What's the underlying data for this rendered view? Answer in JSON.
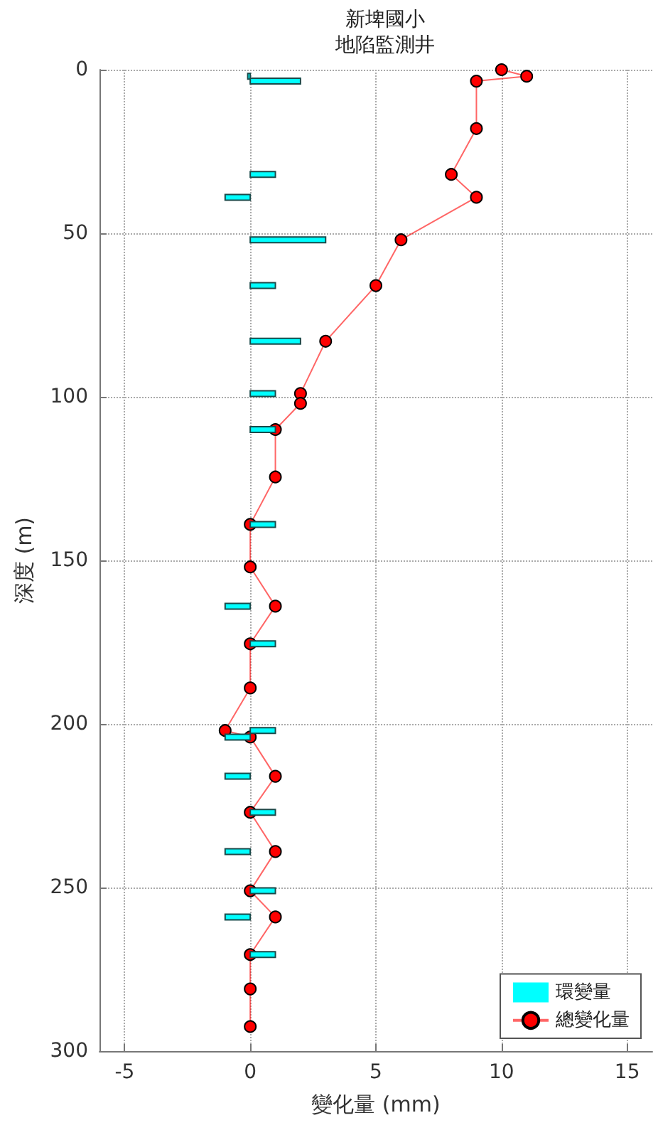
{
  "chart_data": {
    "type": "bar",
    "title": "新埤國小",
    "subtitle": "地陷監測井",
    "xlabel": "變化量 (mm)",
    "ylabel": "深度 (m)",
    "orientation": "horizontal",
    "x": [
      0,
      2,
      3.5,
      18,
      32,
      39,
      52,
      66,
      83,
      99,
      102,
      110,
      124.5,
      139,
      152,
      164,
      175.5,
      189,
      202,
      204,
      216,
      227,
      239,
      251,
      259,
      270.5,
      281,
      292.5
    ],
    "series": [
      {
        "name": "環變量",
        "color": "#00ffff",
        "values": [
          null,
          -0.1,
          2,
          null,
          1,
          -1,
          3,
          1,
          2,
          1,
          null,
          1,
          null,
          1,
          null,
          -1,
          1,
          null,
          1,
          -1,
          -1,
          1,
          -1,
          1,
          -1,
          1,
          null,
          null
        ]
      },
      {
        "name": "總變化量",
        "type": "line",
        "color": "#ff0000",
        "values": [
          10,
          11,
          9,
          9,
          8,
          9,
          6,
          5,
          3,
          2,
          2,
          1,
          1,
          0,
          0,
          1,
          0,
          0,
          -1,
          0,
          1,
          0,
          1,
          0,
          1,
          0,
          0,
          0
        ]
      }
    ],
    "xlim": [
      -6,
      16
    ],
    "xticks": [
      -5,
      0,
      5,
      10,
      15
    ],
    "ylim": [
      300,
      0
    ],
    "yticks": [
      0,
      50,
      100,
      150,
      200,
      250,
      300
    ],
    "grid": true,
    "legend": "bottom right",
    "marker": "circle",
    "line_style": "solid"
  }
}
